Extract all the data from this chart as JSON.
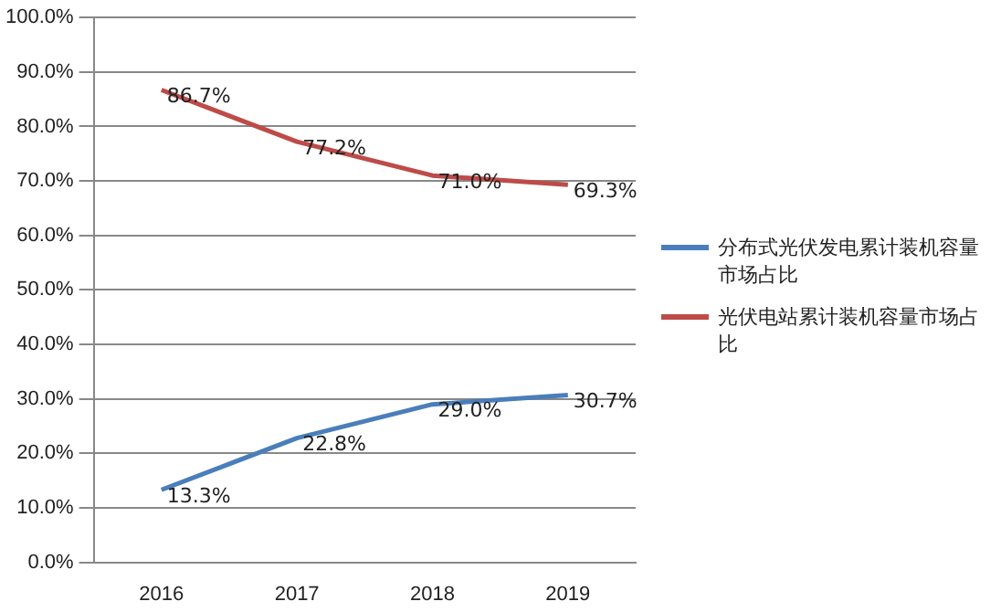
{
  "chart_data": {
    "type": "line",
    "categories": [
      "2016",
      "2017",
      "2018",
      "2019"
    ],
    "series": [
      {
        "name": "分布式光伏发电累计装机容量市场占比",
        "color": "#4a7ebb",
        "values": [
          13.3,
          22.8,
          29.0,
          30.7
        ],
        "value_labels": [
          "13.3%",
          "22.8%",
          "29.0%",
          "30.7%"
        ]
      },
      {
        "name": "光伏电站累计装机容量市场占比",
        "color": "#be4b48",
        "values": [
          86.7,
          77.2,
          71.0,
          69.3
        ],
        "value_labels": [
          "86.7%",
          "77.2%",
          "71.0%",
          "69.3%"
        ]
      }
    ],
    "ylim": [
      0,
      100
    ],
    "yticks": [
      {
        "value": 0,
        "label": "0.0%"
      },
      {
        "value": 10,
        "label": "10.0%"
      },
      {
        "value": 20,
        "label": "20.0%"
      },
      {
        "value": 30,
        "label": "30.0%"
      },
      {
        "value": 40,
        "label": "40.0%"
      },
      {
        "value": 50,
        "label": "50.0%"
      },
      {
        "value": 60,
        "label": "60.0%"
      },
      {
        "value": 70,
        "label": "70.0%"
      },
      {
        "value": 80,
        "label": "80.0%"
      },
      {
        "value": 90,
        "label": "90.0%"
      },
      {
        "value": 100,
        "label": "100.0%"
      }
    ],
    "grid": "y",
    "legend": "right",
    "marker": "none",
    "line_style": "solid"
  }
}
